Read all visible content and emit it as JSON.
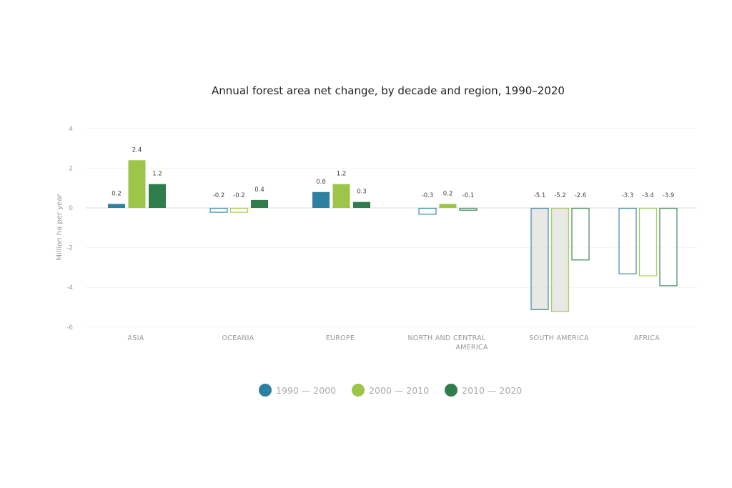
{
  "chart_data": {
    "type": "bar",
    "title": "Annual forest area net change, by decade and region, 1990–2020",
    "xlabel": "",
    "ylabel": "Million ha per year",
    "ylim": [
      -6,
      4
    ],
    "yticks": [
      "4",
      "2",
      "0",
      "-2",
      "-4",
      "-6"
    ],
    "ytick_values": [
      4,
      2,
      0,
      -2,
      -4,
      -6
    ],
    "grid": true,
    "legend_position": "bottom",
    "categories": [
      "ASIA",
      "OCEANIA",
      "EUROPE",
      "NORTH AND CENTRAL AMERICA",
      "SOUTH AMERICA",
      "AFRICA"
    ],
    "category_lines": [
      [
        "ASIA"
      ],
      [
        "OCEANIA"
      ],
      [
        "EUROPE"
      ],
      [
        "NORTH AND CENTRAL",
        "AMERICA"
      ],
      [
        "SOUTH AMERICA"
      ],
      [
        "AFRICA"
      ]
    ],
    "series": [
      {
        "name": "1990 — 2000",
        "color": "#2e7fa0",
        "values": [
          0.2,
          -0.2,
          0.8,
          -0.3,
          -5.1,
          -3.3
        ],
        "labels": [
          "0.2",
          "-0.2",
          "0.8",
          "-0.3",
          "-5.1",
          "-3.3"
        ]
      },
      {
        "name": "2000 — 2010",
        "color": "#9cc54a",
        "values": [
          2.4,
          -0.2,
          1.2,
          0.2,
          -5.2,
          -3.4
        ],
        "labels": [
          "2.4",
          "-0.2",
          "1.2",
          "0.2",
          "-5.2",
          "-3.4"
        ]
      },
      {
        "name": "2010 — 2020",
        "color": "#2f7d4d",
        "values": [
          1.2,
          0.4,
          0.3,
          -0.1,
          -2.6,
          -3.9
        ],
        "labels": [
          "1.2",
          "0.4",
          "0.3",
          "-0.1",
          "-2.6",
          "-3.9"
        ]
      }
    ]
  }
}
